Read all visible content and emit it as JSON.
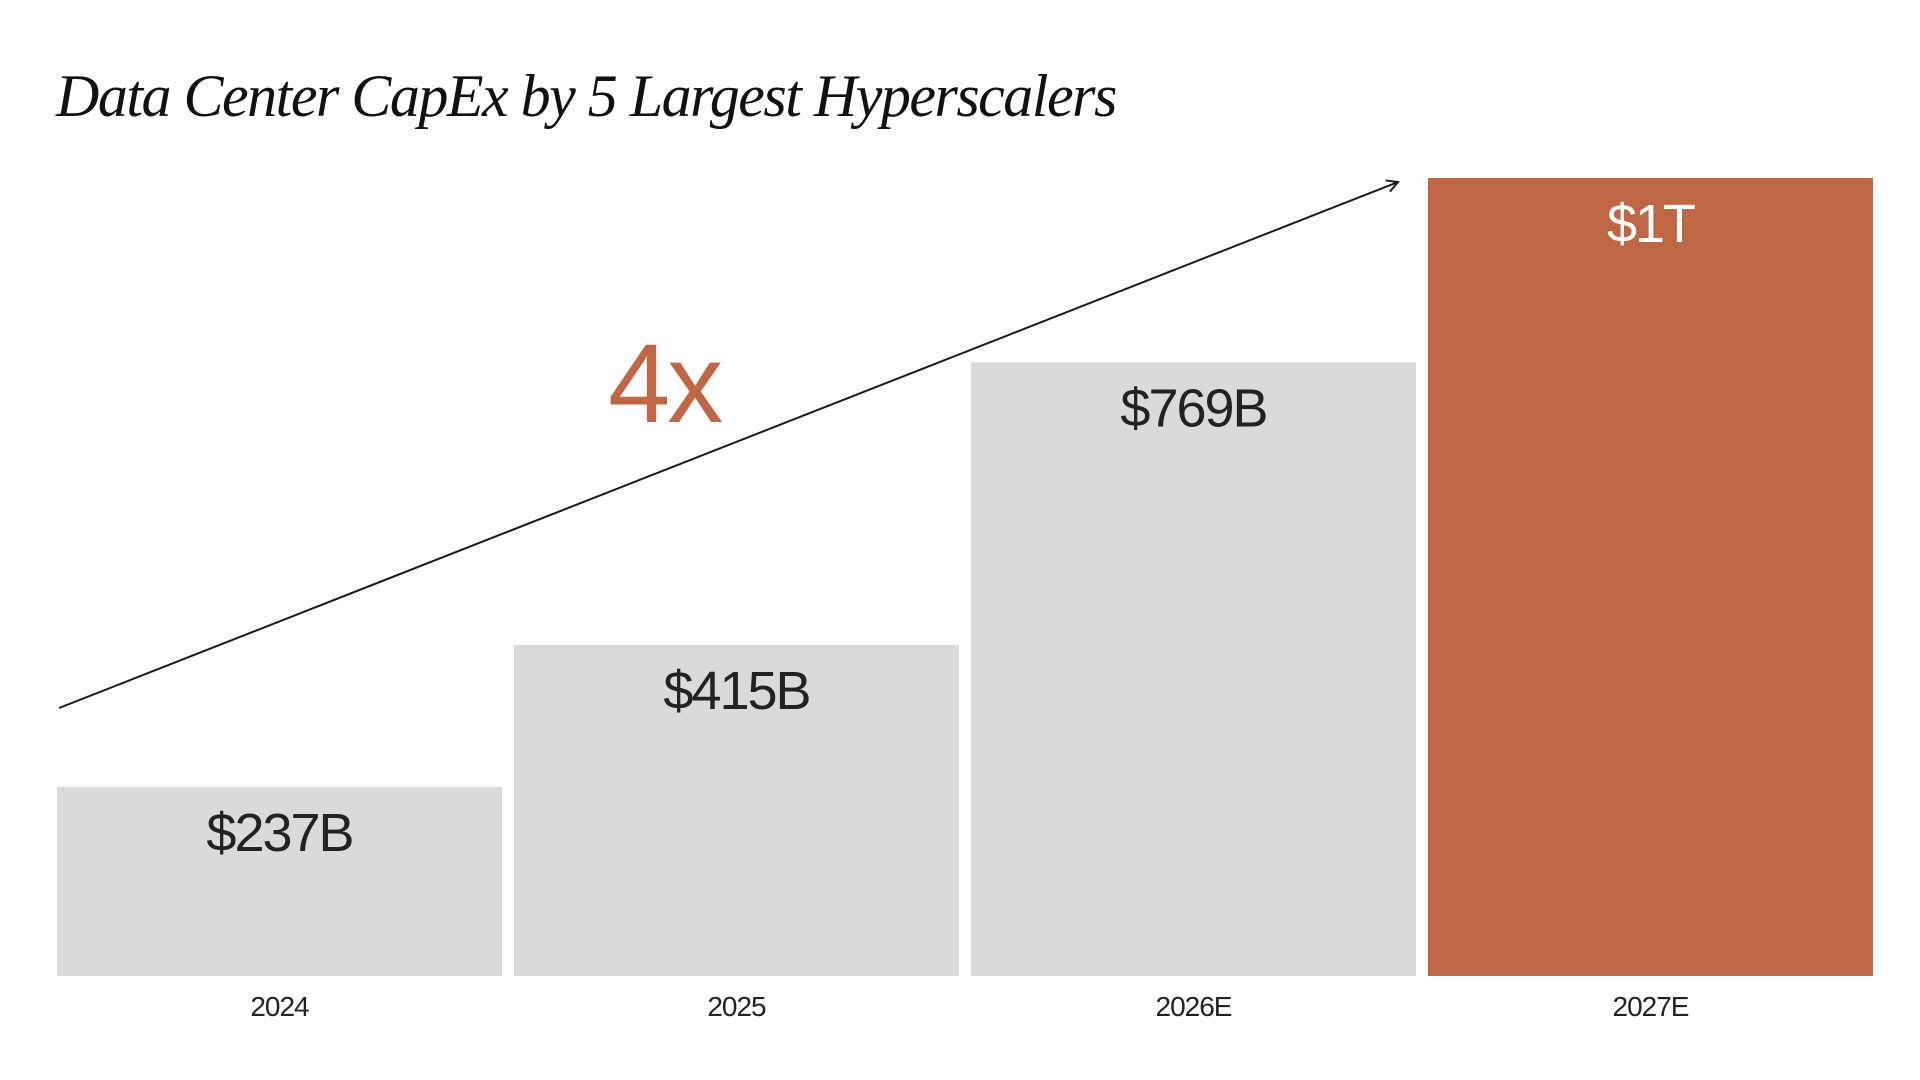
{
  "title": "Data Center CapEx by 5 Largest Hyperscalers",
  "colors": {
    "bar": "#dadada",
    "highlight": "#bf6645",
    "text": "#222222",
    "highlight_text": "#ffffff",
    "arrow": "#1a1a1a"
  },
  "chart_data": {
    "type": "bar",
    "title": "Data Center CapEx by 5 Largest Hyperscalers",
    "categories": [
      "2024",
      "2025",
      "2026E",
      "2027E"
    ],
    "values": [
      237,
      415,
      769,
      1000
    ],
    "value_labels": [
      "$237B",
      "$415B",
      "$769B",
      "$1T"
    ],
    "unit": "$B",
    "highlight_index": 3,
    "ylim": [
      0,
      1000
    ],
    "grid": false,
    "legend": "none",
    "annotation": {
      "text": "4x",
      "type": "arrow-trend"
    }
  }
}
